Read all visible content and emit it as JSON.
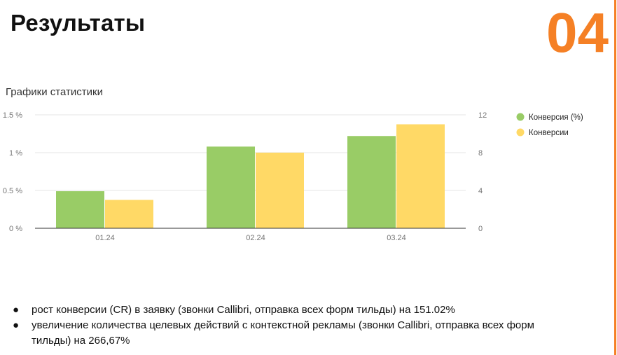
{
  "header": {
    "title": "Результаты",
    "section_number": "04",
    "accent_color": "#f58025"
  },
  "chart_data": {
    "type": "bar",
    "title": "Графики статистики",
    "categories": [
      "01.24",
      "02.24",
      "03.24"
    ],
    "series": [
      {
        "name": "Конверсия (%)",
        "axis": "left",
        "color": "#99cc66",
        "values": [
          0.49,
          1.08,
          1.22
        ]
      },
      {
        "name": "Конверсии",
        "axis": "right",
        "color": "#ffd966",
        "values": [
          3,
          8,
          11
        ]
      }
    ],
    "y_left": {
      "ticks": [
        "0 %",
        "0.5 %",
        "1 %",
        "1.5 %"
      ],
      "min": 0,
      "max": 1.5
    },
    "y_right": {
      "ticks": [
        "0",
        "4",
        "8",
        "12"
      ],
      "min": 0,
      "max": 12
    },
    "legend_position": "right",
    "grid": true,
    "xlabel": "",
    "ylabel": ""
  },
  "bullets": [
    "рост конверсии (CR) в заявку (звонки Callibri, отправка всех форм тильды) на 151.02%",
    "увеличение количества целевых действий с контекстной рекламы (звонки Callibri, отправка всех форм тильды) на 266,67%"
  ],
  "bullet_symbol": "●"
}
